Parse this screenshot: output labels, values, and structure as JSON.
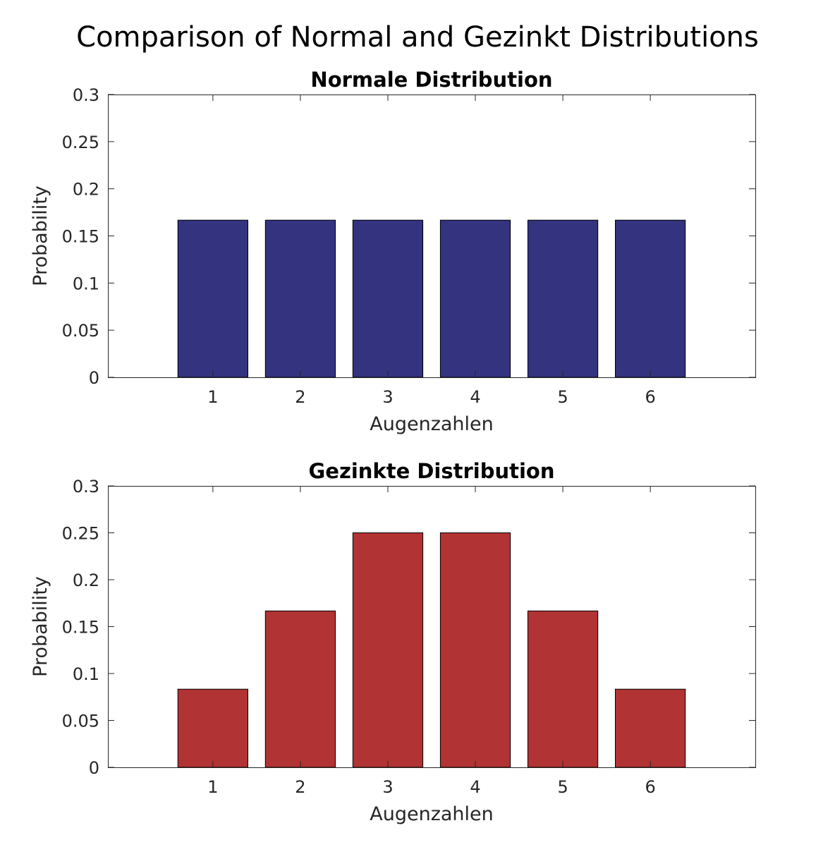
{
  "figure_title": "Comparison of Normal and Gezinkt Distributions",
  "chart_data": [
    {
      "type": "bar",
      "title": "Normale Distribution",
      "xlabel": "Augenzahlen",
      "ylabel": "Probability",
      "categories": [
        "1",
        "2",
        "3",
        "4",
        "5",
        "6"
      ],
      "values": [
        0.1667,
        0.1667,
        0.1667,
        0.1667,
        0.1667,
        0.1667
      ],
      "ylim": [
        0,
        0.3
      ],
      "xlim": [
        -0.2,
        7.2
      ],
      "yticks": [
        0,
        0.05,
        0.1,
        0.15,
        0.2,
        0.25,
        0.3
      ],
      "ytick_labels": [
        "0",
        "0.05",
        "0.1",
        "0.15",
        "0.2",
        "0.25",
        "0.3"
      ],
      "bar_color": "#33337f",
      "grid": false
    },
    {
      "type": "bar",
      "title": "Gezinkte Distribution",
      "xlabel": "Augenzahlen",
      "ylabel": "Probability",
      "categories": [
        "1",
        "2",
        "3",
        "4",
        "5",
        "6"
      ],
      "values": [
        0.0833,
        0.1667,
        0.25,
        0.25,
        0.1667,
        0.0833
      ],
      "ylim": [
        0,
        0.3
      ],
      "xlim": [
        -0.2,
        7.2
      ],
      "yticks": [
        0,
        0.05,
        0.1,
        0.15,
        0.2,
        0.25,
        0.3
      ],
      "ytick_labels": [
        "0",
        "0.05",
        "0.1",
        "0.15",
        "0.2",
        "0.25",
        "0.3"
      ],
      "bar_color": "#b23333",
      "grid": false
    }
  ]
}
